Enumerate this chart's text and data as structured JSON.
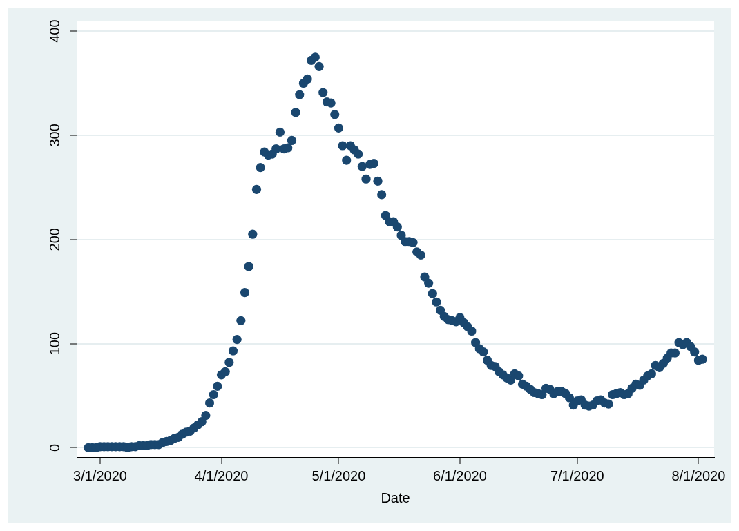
{
  "chart_data": {
    "type": "scatter",
    "xlabel": "Date",
    "x": [
      "2020-02-27",
      "2020-02-28",
      "2020-02-29",
      "2020-03-01",
      "2020-03-02",
      "2020-03-03",
      "2020-03-04",
      "2020-03-05",
      "2020-03-06",
      "2020-03-07",
      "2020-03-08",
      "2020-03-09",
      "2020-03-10",
      "2020-03-11",
      "2020-03-12",
      "2020-03-13",
      "2020-03-14",
      "2020-03-15",
      "2020-03-16",
      "2020-03-17",
      "2020-03-18",
      "2020-03-19",
      "2020-03-20",
      "2020-03-21",
      "2020-03-22",
      "2020-03-23",
      "2020-03-24",
      "2020-03-25",
      "2020-03-26",
      "2020-03-27",
      "2020-03-28",
      "2020-03-29",
      "2020-03-30",
      "2020-03-31",
      "2020-04-01",
      "2020-04-02",
      "2020-04-03",
      "2020-04-04",
      "2020-04-05",
      "2020-04-06",
      "2020-04-07",
      "2020-04-08",
      "2020-04-09",
      "2020-04-10",
      "2020-04-11",
      "2020-04-12",
      "2020-04-13",
      "2020-04-14",
      "2020-04-15",
      "2020-04-16",
      "2020-04-17",
      "2020-04-18",
      "2020-04-19",
      "2020-04-20",
      "2020-04-21",
      "2020-04-22",
      "2020-04-23",
      "2020-04-24",
      "2020-04-25",
      "2020-04-26",
      "2020-04-27",
      "2020-04-28",
      "2020-04-29",
      "2020-04-30",
      "2020-05-01",
      "2020-05-02",
      "2020-05-03",
      "2020-05-04",
      "2020-05-05",
      "2020-05-06",
      "2020-05-07",
      "2020-05-08",
      "2020-05-09",
      "2020-05-10",
      "2020-05-11",
      "2020-05-12",
      "2020-05-13",
      "2020-05-14",
      "2020-05-15",
      "2020-05-16",
      "2020-05-17",
      "2020-05-18",
      "2020-05-19",
      "2020-05-20",
      "2020-05-21",
      "2020-05-22",
      "2020-05-23",
      "2020-05-24",
      "2020-05-25",
      "2020-05-26",
      "2020-05-27",
      "2020-05-28",
      "2020-05-29",
      "2020-05-30",
      "2020-05-31",
      "2020-06-01",
      "2020-06-02",
      "2020-06-03",
      "2020-06-04",
      "2020-06-05",
      "2020-06-06",
      "2020-06-07",
      "2020-06-08",
      "2020-06-09",
      "2020-06-10",
      "2020-06-11",
      "2020-06-12",
      "2020-06-13",
      "2020-06-14",
      "2020-06-15",
      "2020-06-16",
      "2020-06-17",
      "2020-06-18",
      "2020-06-19",
      "2020-06-20",
      "2020-06-21",
      "2020-06-22",
      "2020-06-23",
      "2020-06-24",
      "2020-06-25",
      "2020-06-26",
      "2020-06-27",
      "2020-06-28",
      "2020-06-29",
      "2020-06-30",
      "2020-07-01",
      "2020-07-02",
      "2020-07-03",
      "2020-07-04",
      "2020-07-05",
      "2020-07-06",
      "2020-07-07",
      "2020-07-08",
      "2020-07-09",
      "2020-07-10",
      "2020-07-11",
      "2020-07-12",
      "2020-07-13",
      "2020-07-14",
      "2020-07-15",
      "2020-07-16",
      "2020-07-17",
      "2020-07-18",
      "2020-07-19",
      "2020-07-20",
      "2020-07-21",
      "2020-07-22",
      "2020-07-23",
      "2020-07-24",
      "2020-07-25",
      "2020-07-26",
      "2020-07-27",
      "2020-07-28",
      "2020-07-29",
      "2020-07-30",
      "2020-07-31",
      "2020-08-01",
      "2020-08-02"
    ],
    "series": [
      {
        "color": "#1a476f",
        "values": [
          0,
          0,
          0,
          1,
          1,
          1,
          1,
          1,
          1,
          1,
          0,
          1,
          1,
          2,
          2,
          2,
          3,
          3,
          3,
          5,
          6,
          7,
          9,
          10,
          13,
          15,
          16,
          19,
          22,
          25,
          31,
          43,
          51,
          59,
          70,
          73,
          82,
          93,
          104,
          122,
          149,
          174,
          205,
          248,
          269,
          284,
          281,
          282,
          287,
          303,
          287,
          288,
          295,
          322,
          339,
          350,
          354,
          372,
          375,
          366,
          341,
          332,
          331,
          320,
          307,
          290,
          276,
          290,
          286,
          282,
          270,
          258,
          272,
          273,
          256,
          243,
          223,
          217,
          217,
          212,
          204,
          198,
          198,
          197,
          188,
          185,
          164,
          158,
          148,
          140,
          132,
          126,
          123,
          122,
          121,
          125,
          120,
          116,
          112,
          101,
          95,
          92,
          84,
          79,
          78,
          73,
          70,
          67,
          65,
          71,
          69,
          61,
          59,
          56,
          53,
          52,
          51,
          57,
          56,
          52,
          54,
          54,
          52,
          48,
          41,
          45,
          46,
          41,
          40,
          41,
          45,
          46,
          43,
          42,
          51,
          52,
          53,
          51,
          52,
          57,
          61,
          60,
          65,
          69,
          71,
          79,
          77,
          81,
          86,
          91,
          91,
          101,
          99,
          101,
          97,
          92,
          84,
          85
        ]
      }
    ],
    "xlim": [
      "2020-02-24",
      "2020-08-05"
    ],
    "ylim": [
      -9,
      410
    ],
    "xticks": [
      {
        "value": "2020-03-01",
        "label": "3/1/2020"
      },
      {
        "value": "2020-04-01",
        "label": "4/1/2020"
      },
      {
        "value": "2020-05-01",
        "label": "5/1/2020"
      },
      {
        "value": "2020-06-01",
        "label": "6/1/2020"
      },
      {
        "value": "2020-07-01",
        "label": "7/1/2020"
      },
      {
        "value": "2020-08-01",
        "label": "8/1/2020"
      }
    ],
    "yticks": [
      0,
      100,
      200,
      300,
      400
    ],
    "grid": "y",
    "marker": "circle"
  }
}
